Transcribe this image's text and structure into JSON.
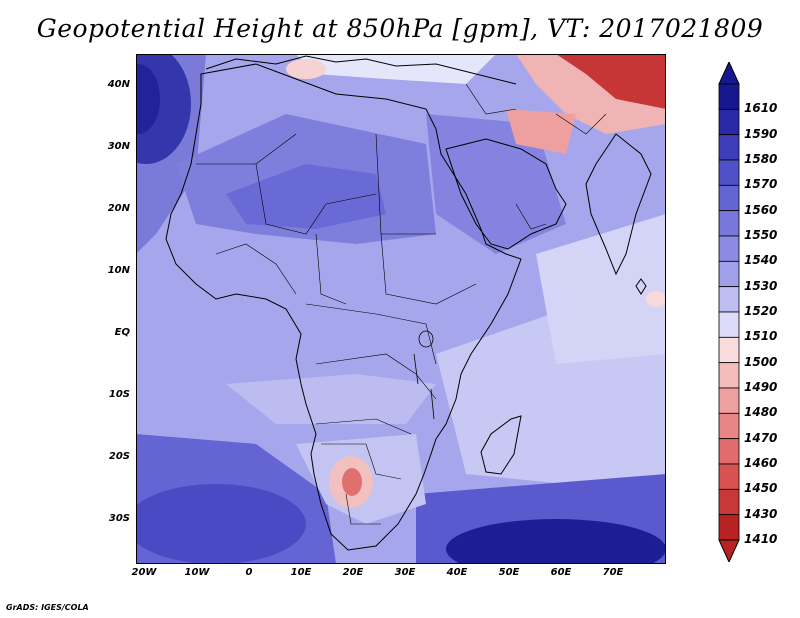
{
  "title": "Geopotential Height at 850hPa [gpm], VT: 2017021809",
  "credit": "GrADS: IGES/COLA",
  "latitude_labels": [
    "40N",
    "30N",
    "20N",
    "10N",
    "EQ",
    "10S",
    "20S",
    "30S"
  ],
  "longitude_labels": [
    "20W",
    "10W",
    "0",
    "10E",
    "20E",
    "30E",
    "40E",
    "50E",
    "60E",
    "70E"
  ],
  "colorbar": {
    "levels": [
      "1610",
      "1590",
      "1580",
      "1570",
      "1560",
      "1550",
      "1540",
      "1530",
      "1520",
      "1510",
      "1500",
      "1490",
      "1480",
      "1470",
      "1460",
      "1450",
      "1430",
      "1410"
    ],
    "colors": [
      "#17178f",
      "#2a2aa8",
      "#3d3dba",
      "#5050c8",
      "#6464d4",
      "#7777dc",
      "#8b8be3",
      "#a0a0ea",
      "#bebef2",
      "#dcdcf8",
      "#fadcdc",
      "#f4bcbc",
      "#eea0a0",
      "#e88686",
      "#e06c6c",
      "#d85252",
      "#c83838",
      "#b82222"
    ]
  }
}
